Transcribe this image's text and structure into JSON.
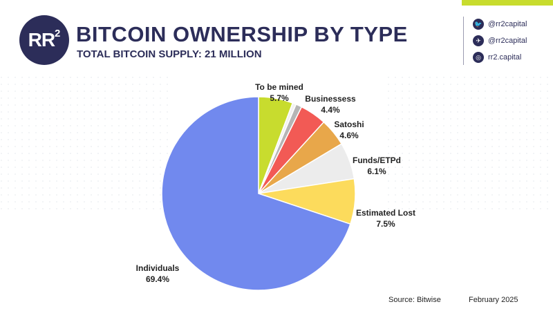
{
  "header": {
    "logo_text": "RR",
    "logo_sup": "2",
    "title": "BITCOIN OWNERSHIP BY TYPE",
    "subtitle": "TOTAL BITCOIN SUPPLY: 21 MILLION"
  },
  "social": [
    {
      "icon": "twitter-icon",
      "glyph": "🐦",
      "text": "@rr2capital"
    },
    {
      "icon": "telegram-icon",
      "glyph": "✈",
      "text": "@rr2capital"
    },
    {
      "icon": "globe-icon",
      "glyph": "◎",
      "text": "rr2.capital"
    }
  ],
  "footer": {
    "source": "Source: Bitwise",
    "date": "February 2025"
  },
  "colors": {
    "brand": "#2c2d59",
    "accent": "#c8dc2e"
  },
  "chart_data": {
    "type": "pie",
    "slices": [
      {
        "name": "To be mined",
        "value": 5.7,
        "value_label": "5.7%",
        "color": "#c8dc2e"
      },
      {
        "name": "",
        "value": 0.6,
        "value_label": "",
        "color": "#f2f2f2"
      },
      {
        "name": "",
        "value": 1.0,
        "value_label": "",
        "color": "#b5b5b5"
      },
      {
        "name": "Businessess",
        "value": 4.4,
        "value_label": "4.4%",
        "color": "#f25a55"
      },
      {
        "name": "Satoshi",
        "value": 4.6,
        "value_label": "4.6%",
        "color": "#e8a74a"
      },
      {
        "name": "Funds/ETPd",
        "value": 6.1,
        "value_label": "6.1%",
        "color": "#ececec"
      },
      {
        "name": "Estimated Lost",
        "value": 7.5,
        "value_label": "7.5%",
        "color": "#fcdb5c"
      },
      {
        "name": "Individuals",
        "value": 69.4,
        "value_label": "69.4%",
        "color": "#7189ee"
      }
    ]
  }
}
